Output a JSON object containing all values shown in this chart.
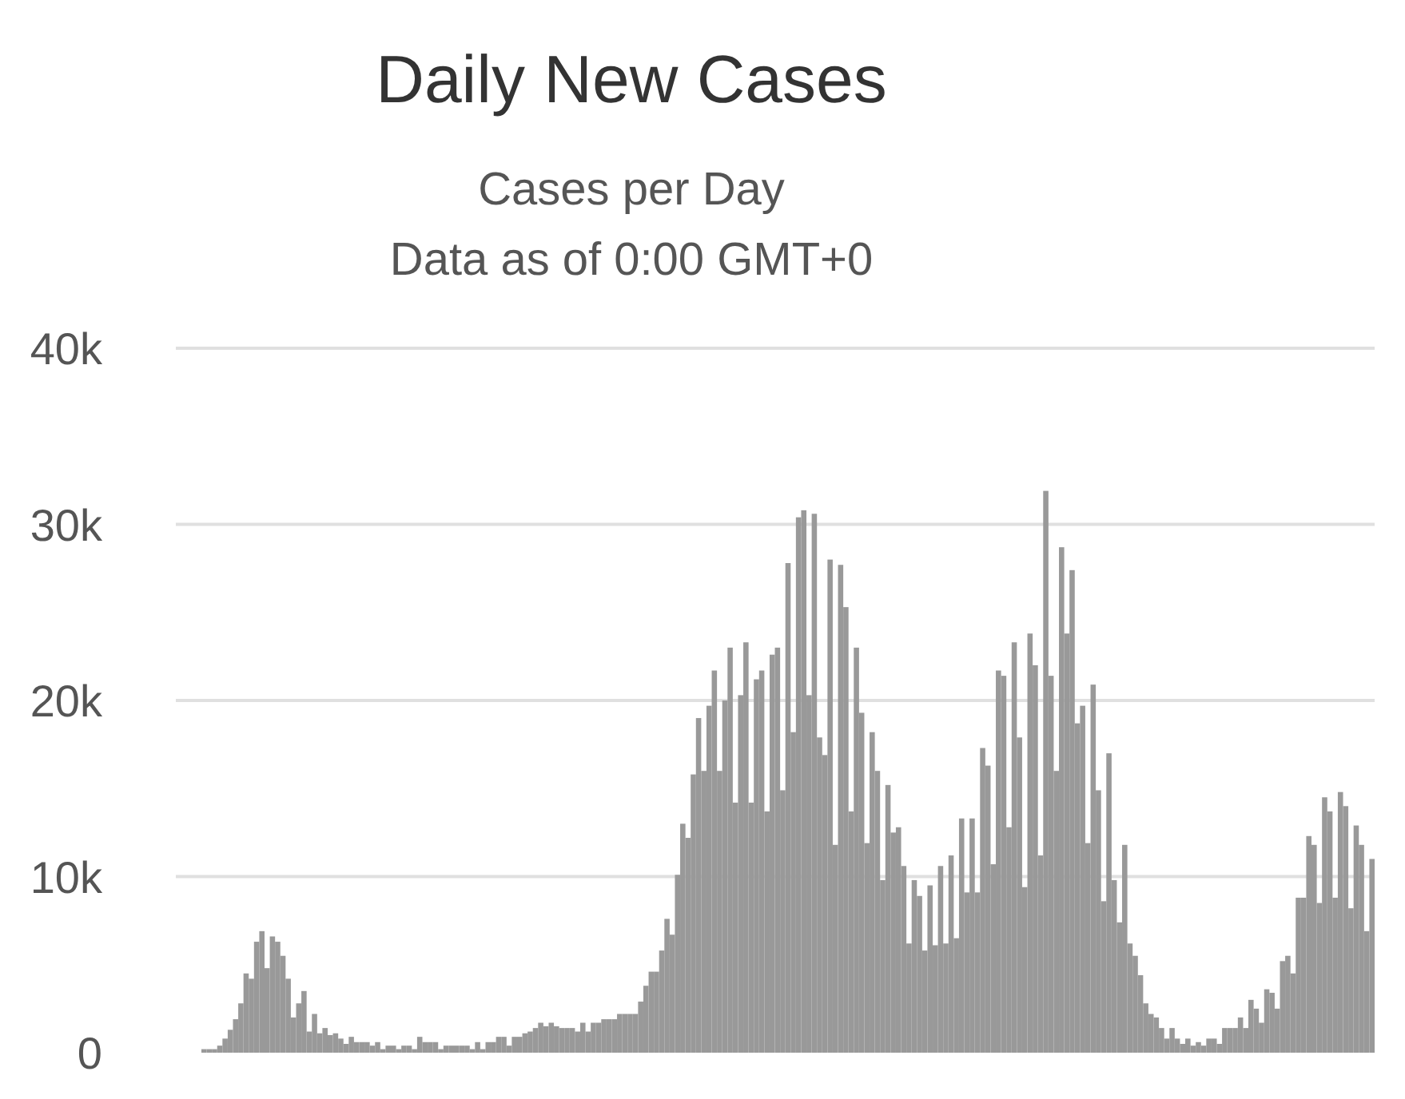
{
  "chart_data": {
    "type": "bar",
    "title": "Daily New Cases",
    "subtitle": "Cases per Day",
    "annotations": [
      "Data as of 0:00 GMT+0"
    ],
    "categories": [
      null,
      null,
      null,
      null,
      null,
      null,
      null,
      null,
      null,
      null,
      null,
      null,
      null,
      null,
      null,
      null,
      null,
      null,
      null,
      null,
      null,
      null,
      null,
      null,
      null,
      null,
      null,
      null,
      null,
      null,
      null,
      null,
      null,
      null,
      null,
      null,
      null,
      null,
      null,
      null,
      null,
      null,
      null,
      null,
      null,
      null,
      null,
      null,
      null,
      null,
      null,
      null,
      null,
      null,
      null,
      null,
      null,
      null,
      null,
      null,
      null,
      null,
      null,
      null,
      null,
      null,
      null,
      null,
      null,
      null,
      null,
      null,
      null,
      null,
      null,
      null,
      null,
      null,
      null,
      null,
      null,
      null,
      null,
      null,
      null,
      null,
      null,
      null,
      null,
      null,
      null,
      null,
      null,
      null,
      null,
      null,
      null,
      null,
      null,
      null,
      null,
      null,
      null,
      null,
      null,
      null,
      null,
      null,
      null,
      null,
      null,
      null,
      null,
      null,
      null,
      null,
      null,
      null,
      null,
      null,
      null,
      null,
      null,
      null,
      null,
      null,
      null,
      null,
      null,
      null,
      null,
      null,
      null,
      null,
      null,
      null,
      null,
      null,
      null,
      null,
      null,
      null,
      null,
      null,
      null,
      null,
      null,
      null,
      null,
      null,
      null,
      null,
      null,
      null,
      null,
      null,
      null,
      null,
      null,
      null,
      null,
      null,
      null,
      null,
      null,
      null,
      null,
      null,
      null,
      null,
      null,
      null,
      null,
      null,
      null,
      null,
      null,
      null,
      null,
      null,
      null,
      null,
      null,
      null,
      null,
      null,
      null,
      null,
      null,
      null,
      null,
      null,
      null,
      null,
      null,
      null,
      null,
      null,
      null,
      null,
      null,
      null,
      null,
      null,
      null,
      null,
      null,
      null,
      null,
      null,
      null,
      null,
      null,
      null,
      null,
      null,
      null,
      null,
      null,
      null,
      null,
      null,
      null
    ],
    "values": [
      200,
      200,
      200,
      400,
      800,
      1300,
      1900,
      2800,
      4500,
      4200,
      6300,
      6900,
      4800,
      6600,
      6300,
      5500,
      4200,
      2000,
      2800,
      3500,
      1200,
      2200,
      1100,
      1400,
      1000,
      1100,
      800,
      500,
      900,
      600,
      600,
      600,
      400,
      600,
      200,
      400,
      400,
      200,
      400,
      400,
      200,
      900,
      600,
      600,
      600,
      200,
      400,
      400,
      400,
      400,
      400,
      200,
      600,
      200,
      600,
      600,
      900,
      900,
      400,
      900,
      900,
      1100,
      1200,
      1400,
      1700,
      1500,
      1700,
      1500,
      1400,
      1400,
      1400,
      1200,
      1700,
      1200,
      1700,
      1700,
      1900,
      1900,
      1900,
      2200,
      2200,
      2200,
      2200,
      2900,
      3800,
      4600,
      4600,
      5800,
      7600,
      6700,
      10100,
      13000,
      12200,
      15800,
      19000,
      16000,
      19700,
      21700,
      16000,
      20000,
      23000,
      14200,
      20300,
      23300,
      14200,
      21200,
      21700,
      13700,
      22600,
      23000,
      14900,
      27800,
      18200,
      30400,
      30800,
      20300,
      30600,
      17900,
      16900,
      28000,
      11800,
      27700,
      25300,
      13700,
      23000,
      19300,
      11900,
      18200,
      16000,
      9800,
      15200,
      12500,
      12800,
      10600,
      6200,
      9800,
      8900,
      5800,
      9500,
      6100,
      10600,
      6200,
      11200,
      6500,
      13300,
      9100,
      13300,
      9100,
      17300,
      16300,
      10700,
      21700,
      21400,
      12800,
      23300,
      17900,
      9400,
      23800,
      22000,
      11200,
      31900,
      21400,
      16000,
      28700,
      23800,
      27400,
      18700,
      19700,
      11900,
      20900,
      14900,
      8600,
      17000,
      9800,
      7400,
      11800,
      6200,
      5500,
      4400,
      2800,
      2200,
      2000,
      1400,
      800,
      1400,
      800,
      500,
      800,
      400,
      600,
      400,
      800,
      800,
      500,
      1400,
      1400,
      1400,
      2000,
      1400,
      3000,
      2500,
      1700,
      3600,
      3400,
      2500,
      5200,
      5500,
      4500,
      8800,
      8800,
      12300,
      11800,
      8500,
      14500,
      13700,
      8800,
      14800,
      14000,
      8200,
      12900,
      11800,
      6900,
      11000
    ],
    "color": "#999999",
    "ylim": [
      0,
      40000
    ],
    "yticks": [
      0,
      {
        "value": 10000,
        "label": "10k"
      },
      {
        "value": 20000,
        "label": "20k"
      },
      {
        "value": 30000,
        "label": "30k"
      },
      {
        "value": 40000,
        "label": "40k"
      }
    ],
    "grid": "y",
    "tick_labels": "y"
  }
}
